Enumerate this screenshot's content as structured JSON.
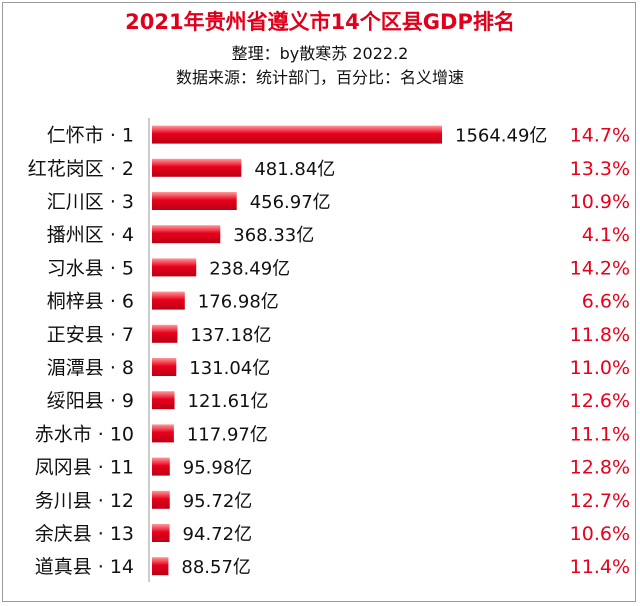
{
  "chart_data": {
    "type": "bar",
    "orientation": "horizontal",
    "title": "2021年贵州省遵义市14个区县GDP排名",
    "subtitle": "整理：by散寒苏 2022.2",
    "source_note": "数据来源：统计部门，百分比：名义增速",
    "categories": [
      "仁怀市 · 1",
      "红花岗区 · 2",
      "汇川区 · 3",
      "播州区 · 4",
      "习水县 · 5",
      "桐梓县 · 6",
      "正安县 · 7",
      "湄潭县 · 8",
      "绥阳县 · 9",
      "赤水市 · 10",
      "凤冈县 · 11",
      "务川县 · 12",
      "余庆县 · 13",
      "道真县 · 14"
    ],
    "values": [
      1564.49,
      481.84,
      456.97,
      368.33,
      238.49,
      176.98,
      137.18,
      131.04,
      121.61,
      117.97,
      95.98,
      95.72,
      94.72,
      88.57
    ],
    "value_labels": [
      "1564.49亿",
      "481.84亿",
      "456.97亿",
      "368.33亿",
      "238.49亿",
      "176.98亿",
      "137.18亿",
      "131.04亿",
      "121.61亿",
      "117.97亿",
      "95.98亿",
      "95.72亿",
      "94.72亿",
      "88.57亿"
    ],
    "growth_labels": [
      "14.7%",
      "13.3%",
      "10.9%",
      "4.1%",
      "14.2%",
      "6.6%",
      "11.8%",
      "11.0%",
      "12.6%",
      "11.1%",
      "12.8%",
      "12.7%",
      "10.6%",
      "11.4%"
    ],
    "xlim": [
      0,
      1564.49
    ],
    "grid": false,
    "bar_color": "#e8001c",
    "growth_color": "#e8001c"
  }
}
